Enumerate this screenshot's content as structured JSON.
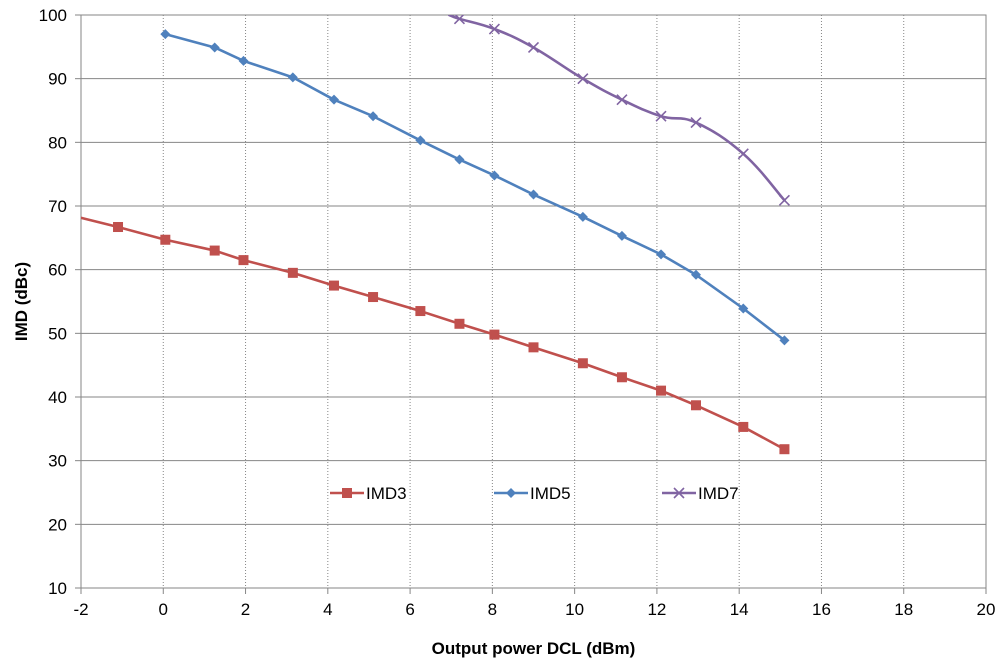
{
  "chart_data": {
    "type": "line",
    "title": "",
    "xlabel": "Output power DCL (dBm)",
    "ylabel": "IMD (dBc)",
    "xlim": [
      -2,
      20
    ],
    "ylim": [
      10,
      100
    ],
    "x_ticks": [
      -2,
      0,
      2,
      4,
      6,
      8,
      10,
      12,
      14,
      16,
      18,
      20
    ],
    "y_ticks": [
      10,
      20,
      30,
      40,
      50,
      60,
      70,
      80,
      90,
      100
    ],
    "grid": {
      "vertical": "dotted",
      "horizontal": "solid"
    },
    "legend_position": "inside-bottom-center",
    "series": [
      {
        "name": "IMD3",
        "color": "#C0504D",
        "marker": "square",
        "x": [
          -2.1,
          -1.1,
          0.05,
          1.25,
          1.95,
          3.15,
          4.15,
          5.1,
          6.25,
          7.2,
          8.05,
          9.0,
          10.2,
          11.15,
          12.1,
          12.95,
          14.1,
          15.1
        ],
        "y": [
          68.3,
          66.7,
          64.7,
          63.0,
          61.5,
          59.5,
          57.5,
          55.7,
          53.5,
          51.5,
          49.8,
          47.8,
          45.3,
          43.1,
          41.0,
          38.7,
          35.3,
          31.8
        ]
      },
      {
        "name": "IMD5",
        "color": "#4F81BD",
        "marker": "diamond",
        "x": [
          0.05,
          1.25,
          1.95,
          3.15,
          4.15,
          5.1,
          6.25,
          7.2,
          8.05,
          9.0,
          10.2,
          11.15,
          12.1,
          12.95,
          14.1,
          15.1
        ],
        "y": [
          97.0,
          94.9,
          92.8,
          90.2,
          86.7,
          84.1,
          80.3,
          77.3,
          74.8,
          71.8,
          68.3,
          65.3,
          62.4,
          59.2,
          53.9,
          48.9
        ]
      },
      {
        "name": "IMD7",
        "color": "#8064A2",
        "marker": "x",
        "x": [
          6.95,
          7.2,
          8.05,
          9.0,
          10.2,
          11.15,
          12.1,
          12.95,
          14.1,
          15.1
        ],
        "y": [
          100.0,
          99.4,
          97.8,
          94.9,
          90.0,
          86.7,
          84.1,
          83.1,
          78.2,
          70.9
        ]
      }
    ]
  }
}
